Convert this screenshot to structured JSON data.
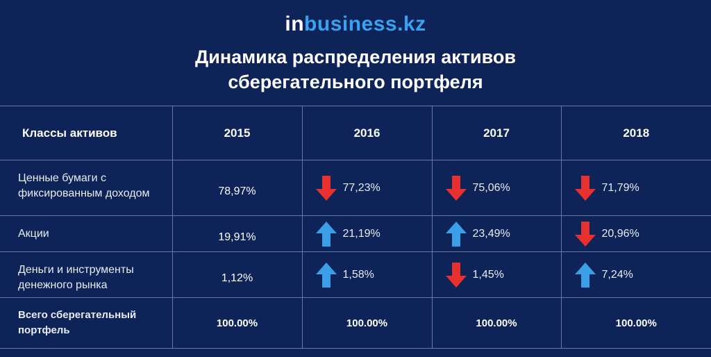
{
  "header": {
    "logo": {
      "prefix": "in",
      "suffix": "business.kz"
    },
    "title_lines": [
      "Динамика распределения активов",
      "сберегательного портфеля"
    ]
  },
  "table": {
    "columns": [
      "Классы активов",
      "2015",
      "2016",
      "2017",
      "2018"
    ],
    "rows": [
      {
        "label": "Ценные бумаги с фиксированным доходом",
        "cells": [
          {
            "text": "78,97%",
            "trend": null
          },
          {
            "text": "77,23%",
            "trend": "down"
          },
          {
            "text": "75,06%",
            "trend": "down"
          },
          {
            "text": "71,79%",
            "trend": "down"
          }
        ]
      },
      {
        "label": "Акции",
        "cells": [
          {
            "text": "19,91%",
            "trend": null
          },
          {
            "text": "21,19%",
            "trend": "up"
          },
          {
            "text": "23,49%",
            "trend": "up"
          },
          {
            "text": "20,96%",
            "trend": "down"
          }
        ]
      },
      {
        "label": "Деньги и инструменты денежного рынка",
        "cells": [
          {
            "text": "1,12%",
            "trend": null
          },
          {
            "text": "1,58%",
            "trend": "up"
          },
          {
            "text": "1,45%",
            "trend": "down"
          },
          {
            "text": "7,24%",
            "trend": "up"
          }
        ]
      }
    ],
    "total": {
      "label": "Всего сберегательный портфель",
      "cells": [
        "100.00%",
        "100.00%",
        "100.00%",
        "100.00%"
      ]
    },
    "trend_colors": {
      "up": "#3a9fe6",
      "down": "#e8302e"
    }
  }
}
